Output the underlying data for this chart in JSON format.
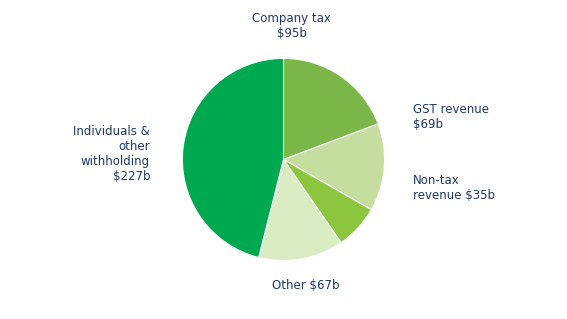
{
  "labels": [
    "Company tax\n$95b",
    "GST revenue\n$69b",
    "Non-tax\nrevenue $35b",
    "Other $67b",
    "Individuals &\nother\nwithholding\n$227b"
  ],
  "values": [
    95,
    69,
    35,
    67,
    227
  ],
  "colors": [
    "#7ab648",
    "#c5dea0",
    "#8cc63f",
    "#daedc2",
    "#00a84f"
  ],
  "label_color": "#1f3864",
  "startangle": 90,
  "figsize": [
    5.67,
    3.19
  ],
  "dpi": 100,
  "font_size": 8.5
}
